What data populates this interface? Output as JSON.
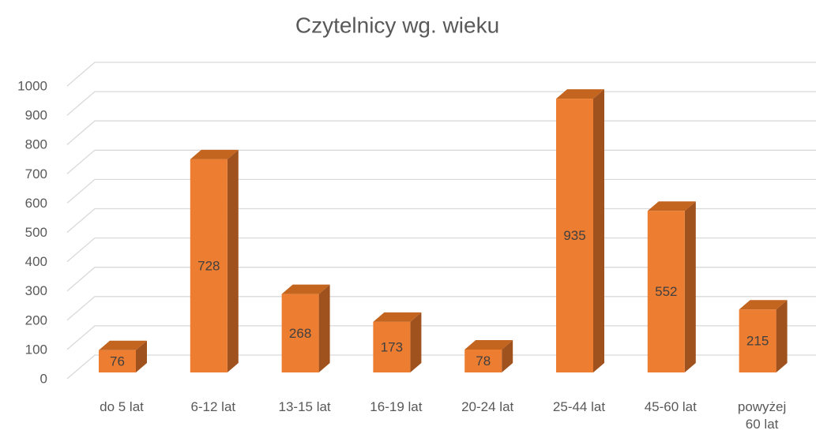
{
  "chart_data": {
    "type": "bar3d",
    "title": "Czytelnicy wg. wieku",
    "categories": [
      "do 5 lat",
      "6-12 lat",
      "13-15 lat",
      "16-19 lat",
      "20-24 lat",
      "25-44 lat",
      "45-60 lat",
      "powyżej 60 lat"
    ],
    "values": [
      76,
      728,
      268,
      173,
      78,
      935,
      552,
      215
    ],
    "color": "#ED7D31",
    "ylim": [
      0,
      1000
    ],
    "yticks": [
      0,
      100,
      200,
      300,
      400,
      500,
      600,
      700,
      800,
      900,
      1000
    ],
    "grid": true
  }
}
